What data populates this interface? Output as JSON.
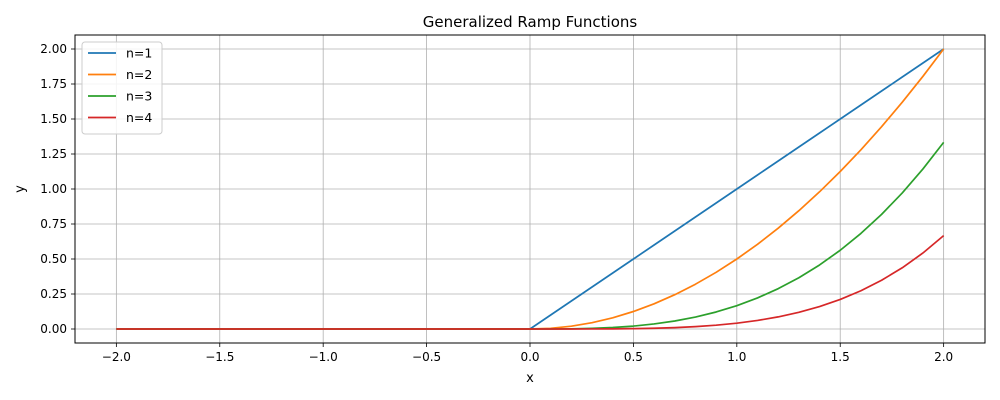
{
  "chart_data": {
    "type": "line",
    "title": "Generalized Ramp Functions",
    "xlabel": "x",
    "ylabel": "y",
    "xlim": [
      -2.2,
      2.2
    ],
    "ylim": [
      -0.1,
      2.1
    ],
    "xticks": [
      "−2.0",
      "−1.5",
      "−1.0",
      "−0.5",
      "0.0",
      "0.5",
      "1.0",
      "1.5",
      "2.0"
    ],
    "xtick_values": [
      -2.0,
      -1.5,
      -1.0,
      -0.5,
      0.0,
      0.5,
      1.0,
      1.5,
      2.0
    ],
    "yticks": [
      "0.00",
      "0.25",
      "0.50",
      "0.75",
      "1.00",
      "1.25",
      "1.50",
      "1.75",
      "2.00"
    ],
    "ytick_values": [
      0.0,
      0.25,
      0.5,
      0.75,
      1.0,
      1.25,
      1.5,
      1.75,
      2.0
    ],
    "grid": true,
    "legend_position": "top-left",
    "x": [
      -2.0,
      -1.5,
      -1.0,
      -0.5,
      0.0,
      0.1,
      0.2,
      0.3,
      0.4,
      0.5,
      0.6,
      0.7,
      0.8,
      0.9,
      1.0,
      1.1,
      1.2,
      1.3,
      1.4,
      1.5,
      1.6,
      1.7,
      1.8,
      1.9,
      2.0
    ],
    "series": [
      {
        "name": "n=1",
        "color": "#1f77b4",
        "values": [
          0,
          0,
          0,
          0,
          0,
          0.1,
          0.2,
          0.3,
          0.4,
          0.5,
          0.6,
          0.7,
          0.8,
          0.9,
          1.0,
          1.1,
          1.2,
          1.3,
          1.4,
          1.5,
          1.6,
          1.7,
          1.8,
          1.9,
          2.0
        ]
      },
      {
        "name": "n=2",
        "color": "#ff7f0e",
        "values": [
          0,
          0,
          0,
          0,
          0,
          0.005,
          0.02,
          0.045,
          0.08,
          0.125,
          0.18,
          0.245,
          0.32,
          0.405,
          0.5,
          0.605,
          0.72,
          0.845,
          0.98,
          1.125,
          1.28,
          1.445,
          1.62,
          1.805,
          2.0
        ]
      },
      {
        "name": "n=3",
        "color": "#2ca02c",
        "values": [
          0,
          0,
          0,
          0,
          0,
          0.0002,
          0.0013,
          0.0045,
          0.0107,
          0.0208,
          0.036,
          0.0572,
          0.0853,
          0.1215,
          0.1667,
          0.2218,
          0.288,
          0.3662,
          0.4573,
          0.5625,
          0.6827,
          0.8188,
          0.972,
          1.1432,
          1.3333
        ]
      },
      {
        "name": "n=4",
        "color": "#d62728",
        "values": [
          0,
          0,
          0,
          0,
          0,
          0.0,
          0.0001,
          0.0003,
          0.0011,
          0.0026,
          0.0054,
          0.01,
          0.0171,
          0.0273,
          0.0417,
          0.061,
          0.0864,
          0.119,
          0.16,
          0.2109,
          0.2731,
          0.348,
          0.4374,
          0.5431,
          0.6667
        ]
      }
    ]
  }
}
